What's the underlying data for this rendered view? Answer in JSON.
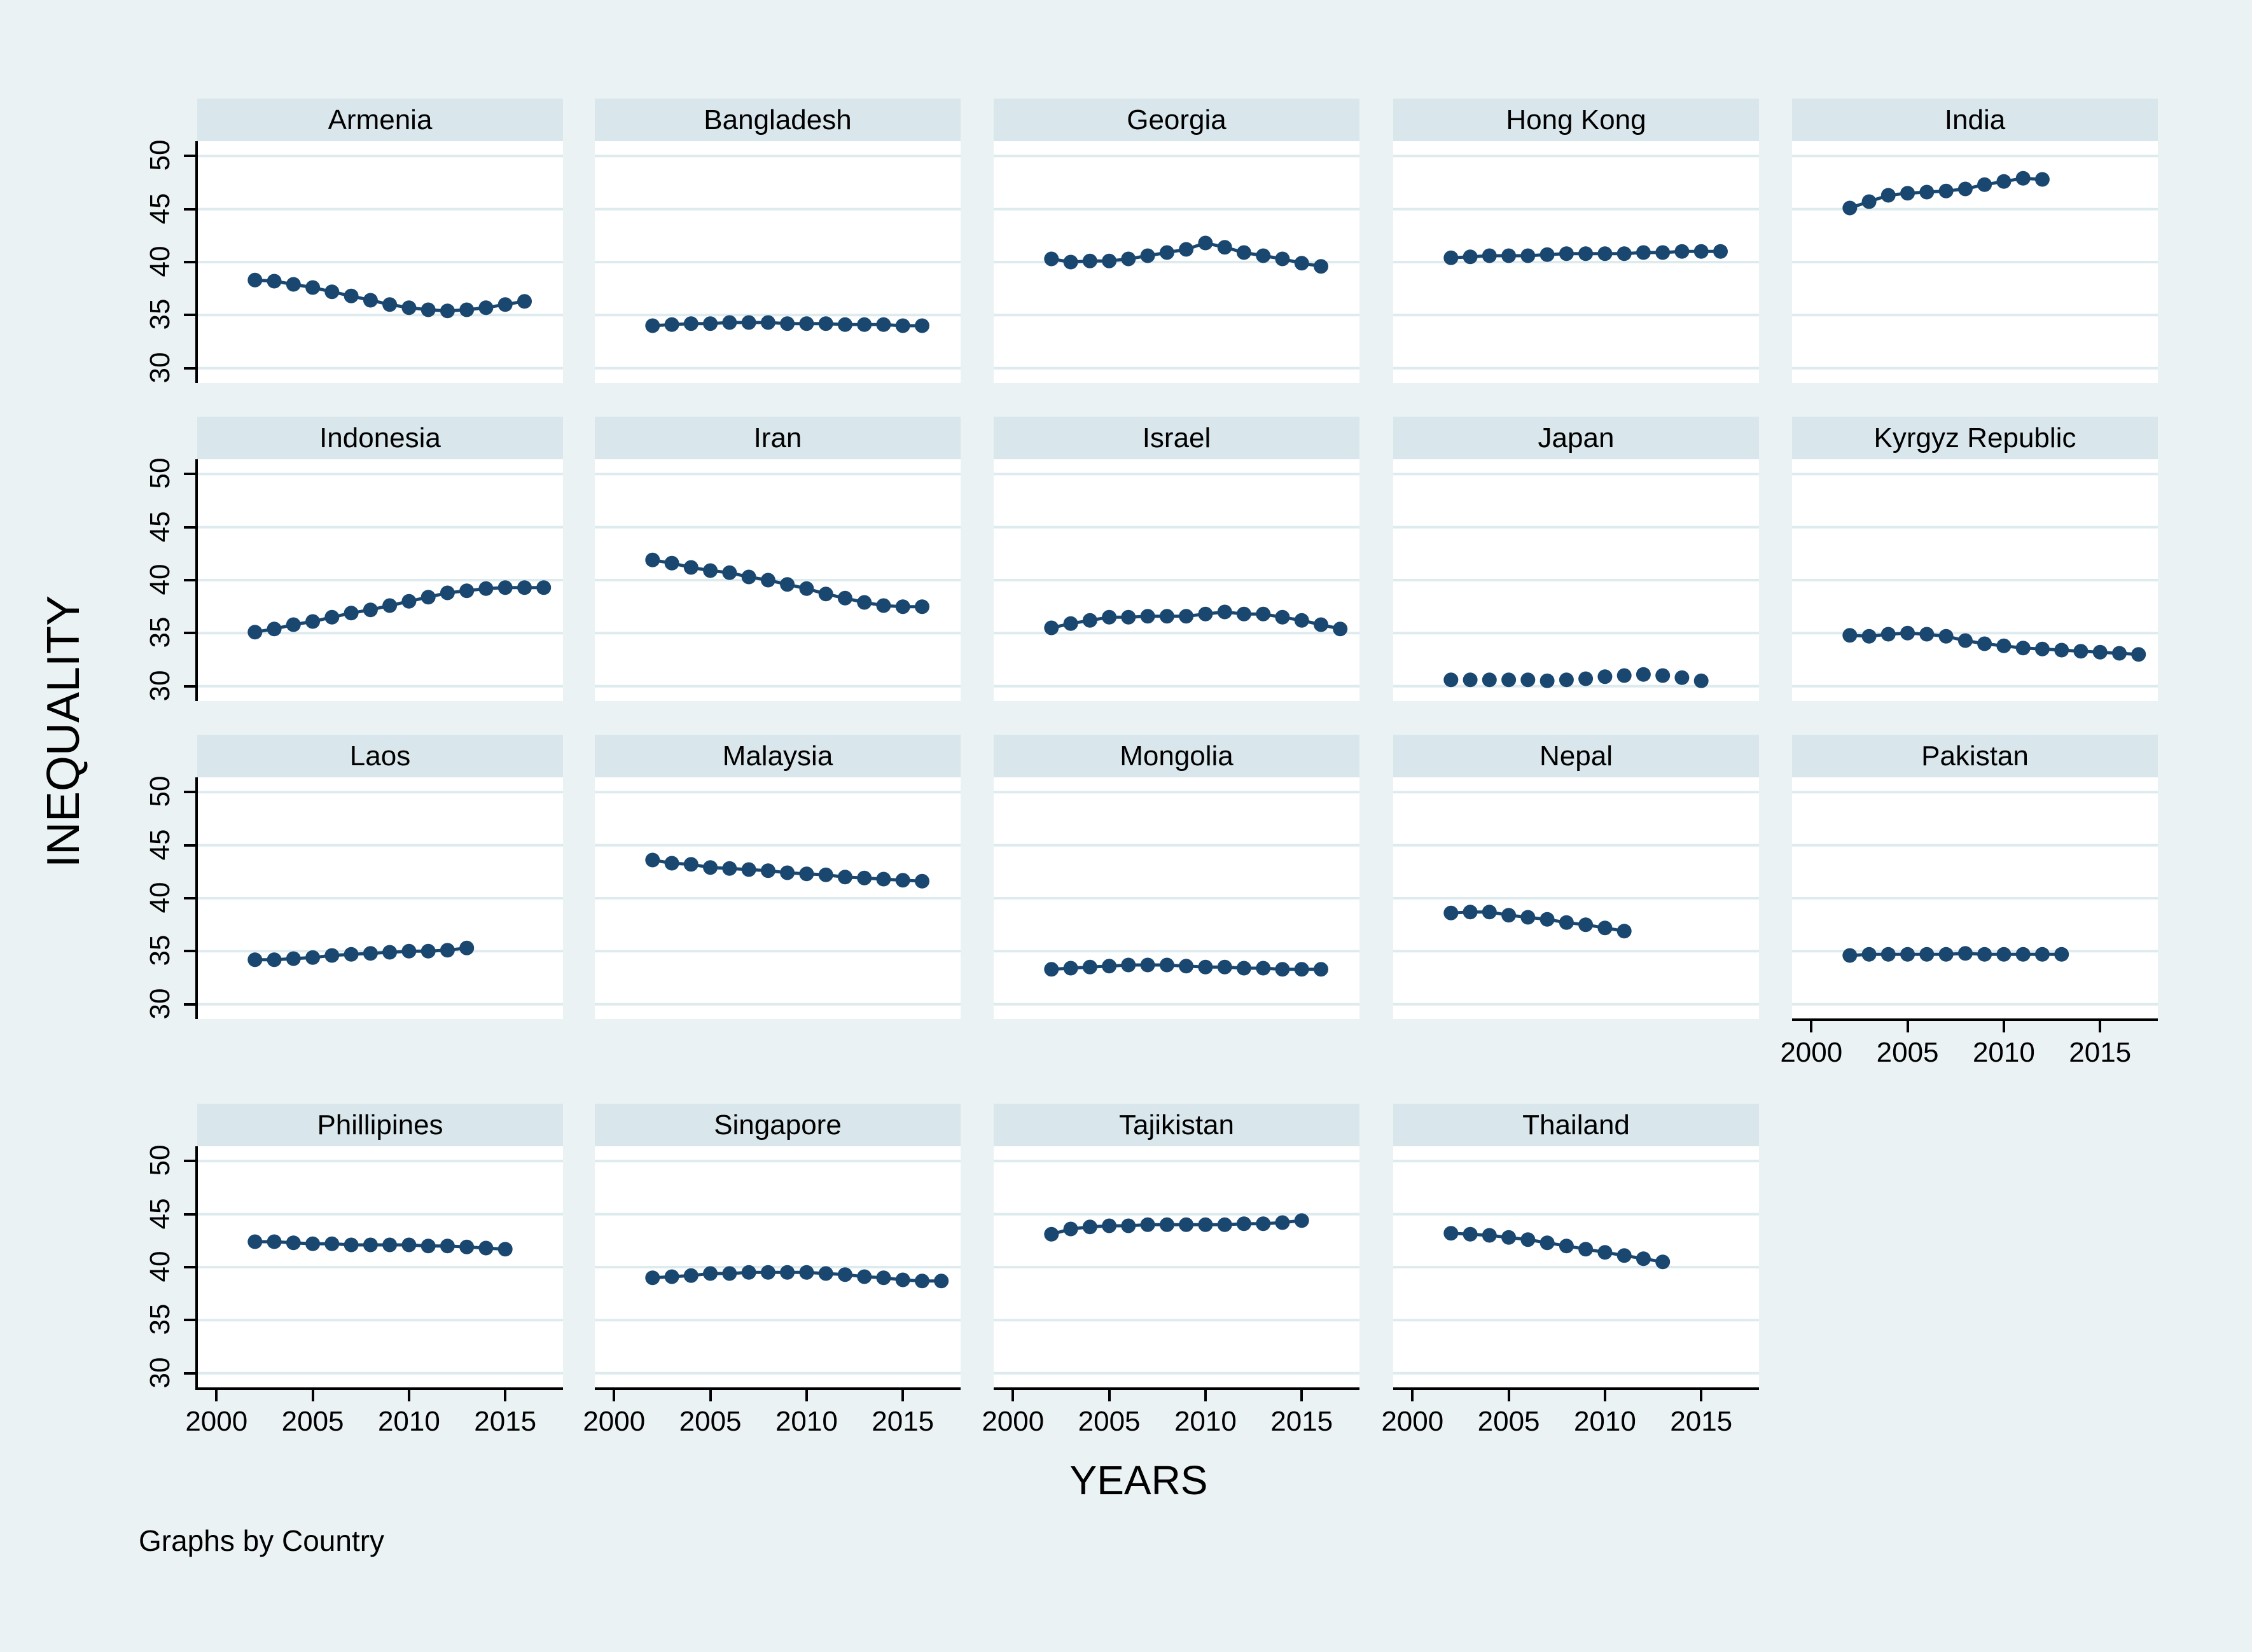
{
  "figure": {
    "ylabel": "INEQUALITY",
    "xlabel": "YEARS",
    "caption": "Graphs by Country",
    "colors": {
      "background": "#EAF2F3",
      "strip": "#D9E6EB",
      "plot_background": "#FFFFFF",
      "gridline": "#DEEBEE",
      "series": "#1A476F",
      "axis": "#000000"
    }
  },
  "chart_data": {
    "type": "line",
    "small_multiples": true,
    "title": "",
    "xlabel": "YEARS",
    "ylabel": "INEQUALITY",
    "grid": true,
    "x_ticks": [
      2000,
      2005,
      2010,
      2015
    ],
    "y_ticks": [
      30,
      35,
      40,
      45,
      50
    ],
    "x_domain": [
      1999,
      2018
    ],
    "y_domain": [
      28.6,
      51.4
    ],
    "year_step": 1,
    "panels": [
      {
        "title": "Armenia",
        "x_start": 2002,
        "markers_only": false,
        "values": [
          38.3,
          38.2,
          37.9,
          37.6,
          37.2,
          36.8,
          36.4,
          36.0,
          35.7,
          35.5,
          35.4,
          35.5,
          35.7,
          36.0,
          36.3
        ]
      },
      {
        "title": "Bangladesh",
        "x_start": 2002,
        "markers_only": false,
        "values": [
          34.0,
          34.1,
          34.2,
          34.2,
          34.3,
          34.3,
          34.3,
          34.2,
          34.2,
          34.2,
          34.1,
          34.1,
          34.1,
          34.0,
          34.0
        ]
      },
      {
        "title": "Georgia",
        "x_start": 2002,
        "markers_only": false,
        "values": [
          40.3,
          40.0,
          40.1,
          40.1,
          40.3,
          40.6,
          40.9,
          41.2,
          41.8,
          41.4,
          40.9,
          40.6,
          40.3,
          39.9,
          39.6
        ]
      },
      {
        "title": "Hong Kong",
        "x_start": 2002,
        "markers_only": false,
        "values": [
          40.4,
          40.5,
          40.6,
          40.6,
          40.6,
          40.7,
          40.8,
          40.8,
          40.8,
          40.8,
          40.9,
          40.9,
          41.0,
          41.0,
          41.0
        ]
      },
      {
        "title": "India",
        "x_start": 2002,
        "markers_only": false,
        "values": [
          45.1,
          45.7,
          46.3,
          46.5,
          46.6,
          46.7,
          46.9,
          47.3,
          47.6,
          47.9,
          47.8
        ]
      },
      {
        "title": "Indonesia",
        "x_start": 2002,
        "markers_only": false,
        "values": [
          35.1,
          35.4,
          35.8,
          36.1,
          36.5,
          36.9,
          37.2,
          37.6,
          38.0,
          38.4,
          38.8,
          39.0,
          39.2,
          39.3,
          39.3,
          39.3
        ]
      },
      {
        "title": "Iran",
        "x_start": 2002,
        "markers_only": false,
        "values": [
          41.9,
          41.6,
          41.2,
          40.9,
          40.7,
          40.3,
          40.0,
          39.6,
          39.2,
          38.7,
          38.3,
          37.9,
          37.6,
          37.5,
          37.5
        ]
      },
      {
        "title": "Israel",
        "x_start": 2002,
        "markers_only": false,
        "values": [
          35.5,
          35.9,
          36.2,
          36.5,
          36.5,
          36.6,
          36.6,
          36.6,
          36.8,
          37.0,
          36.8,
          36.8,
          36.5,
          36.2,
          35.8,
          35.4
        ]
      },
      {
        "title": "Japan",
        "x_start": 2002,
        "markers_only": true,
        "values": [
          30.6,
          30.6,
          30.6,
          30.6,
          30.6,
          30.5,
          30.6,
          30.7,
          30.9,
          31.0,
          31.1,
          31.0,
          30.8,
          30.5
        ]
      },
      {
        "title": "Kyrgyz Republic",
        "x_start": 2002,
        "markers_only": false,
        "values": [
          34.8,
          34.7,
          34.9,
          35.0,
          34.9,
          34.7,
          34.3,
          34.0,
          33.8,
          33.6,
          33.5,
          33.4,
          33.3,
          33.2,
          33.1,
          33.0
        ]
      },
      {
        "title": "Laos",
        "x_start": 2002,
        "markers_only": false,
        "values": [
          34.2,
          34.2,
          34.3,
          34.4,
          34.6,
          34.7,
          34.8,
          34.9,
          35.0,
          35.0,
          35.1,
          35.3
        ]
      },
      {
        "title": "Malaysia",
        "x_start": 2002,
        "markers_only": false,
        "values": [
          43.6,
          43.3,
          43.2,
          42.9,
          42.8,
          42.7,
          42.6,
          42.4,
          42.3,
          42.2,
          42.0,
          41.9,
          41.8,
          41.7,
          41.6
        ]
      },
      {
        "title": "Mongolia",
        "x_start": 2002,
        "markers_only": false,
        "values": [
          33.3,
          33.4,
          33.5,
          33.6,
          33.7,
          33.7,
          33.7,
          33.6,
          33.5,
          33.5,
          33.4,
          33.4,
          33.3,
          33.3,
          33.3
        ]
      },
      {
        "title": "Nepal",
        "x_start": 2002,
        "markers_only": false,
        "values": [
          38.6,
          38.7,
          38.7,
          38.4,
          38.2,
          38.0,
          37.7,
          37.5,
          37.2,
          36.9
        ]
      },
      {
        "title": "Pakistan",
        "x_start": 2002,
        "markers_only": false,
        "values": [
          34.6,
          34.7,
          34.7,
          34.7,
          34.7,
          34.7,
          34.8,
          34.7,
          34.7,
          34.7,
          34.7,
          34.7
        ]
      },
      {
        "title": "Phillipines",
        "x_start": 2002,
        "markers_only": false,
        "values": [
          42.4,
          42.4,
          42.3,
          42.2,
          42.2,
          42.1,
          42.1,
          42.1,
          42.1,
          42.0,
          42.0,
          41.9,
          41.8,
          41.7
        ]
      },
      {
        "title": "Singapore",
        "x_start": 2002,
        "markers_only": false,
        "values": [
          39.0,
          39.1,
          39.2,
          39.4,
          39.4,
          39.5,
          39.5,
          39.5,
          39.5,
          39.4,
          39.3,
          39.1,
          39.0,
          38.8,
          38.7,
          38.7
        ]
      },
      {
        "title": "Tajikistan",
        "x_start": 2002,
        "markers_only": false,
        "values": [
          43.1,
          43.6,
          43.8,
          43.9,
          43.9,
          44.0,
          44.0,
          44.0,
          44.0,
          44.0,
          44.1,
          44.1,
          44.2,
          44.4
        ]
      },
      {
        "title": "Thailand",
        "x_start": 2002,
        "markers_only": false,
        "values": [
          43.2,
          43.1,
          43.0,
          42.8,
          42.6,
          42.3,
          42.0,
          41.7,
          41.4,
          41.1,
          40.8,
          40.5
        ]
      }
    ]
  }
}
